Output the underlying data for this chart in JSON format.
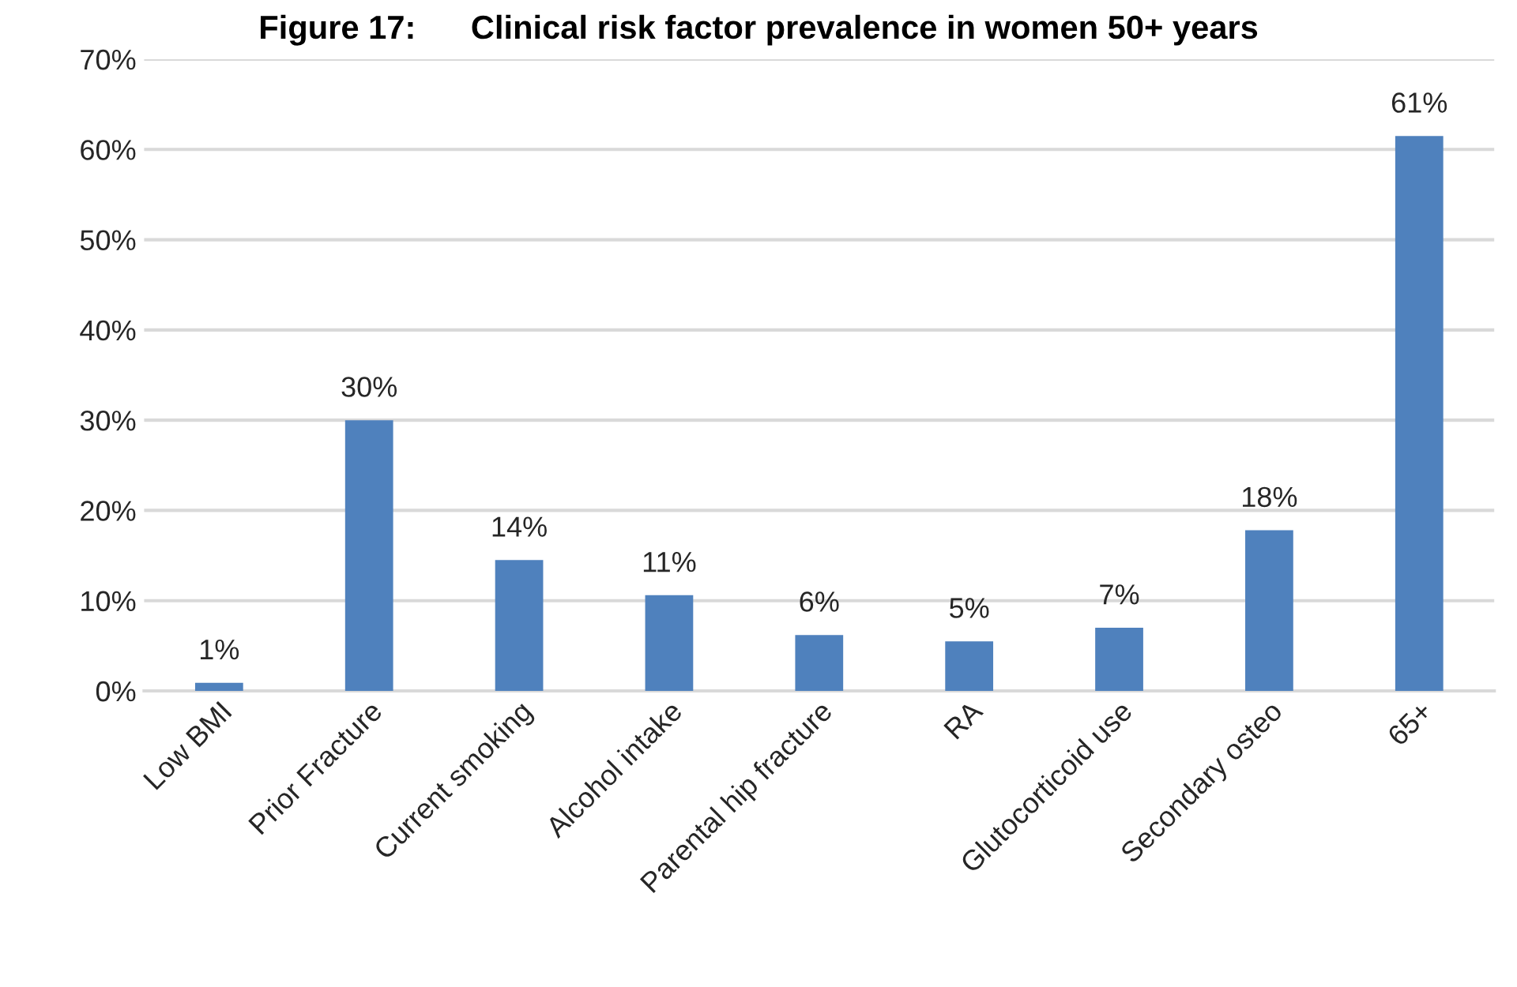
{
  "chart_data": {
    "type": "bar",
    "title": "Figure 17:      Clinical risk factor prevalence in women 50+ years",
    "categories": [
      "Low BMI",
      "Prior Fracture",
      "Current smoking",
      "Alcohol intake",
      "Parental hip fracture",
      "RA",
      "Glutocorticoid use",
      "Secondary osteo",
      "65+"
    ],
    "values": [
      0.9,
      30,
      14.5,
      10.6,
      6.2,
      5.5,
      7.0,
      17.8,
      61.5
    ],
    "value_labels": [
      "1%",
      "30%",
      "14%",
      "11%",
      "6%",
      "5%",
      "7%",
      "18%",
      "61%"
    ],
    "color": "#4f81bd",
    "ylim": [
      0,
      70
    ],
    "yticks": [
      {
        "value": 0,
        "label": "0%"
      },
      {
        "value": 10,
        "label": "10%"
      },
      {
        "value": 20,
        "label": "20%"
      },
      {
        "value": 30,
        "label": "30%"
      },
      {
        "value": 40,
        "label": "40%"
      },
      {
        "value": 50,
        "label": "50%"
      },
      {
        "value": 60,
        "label": "60%"
      },
      {
        "value": 70,
        "label": "70%"
      }
    ],
    "grid": "y"
  }
}
